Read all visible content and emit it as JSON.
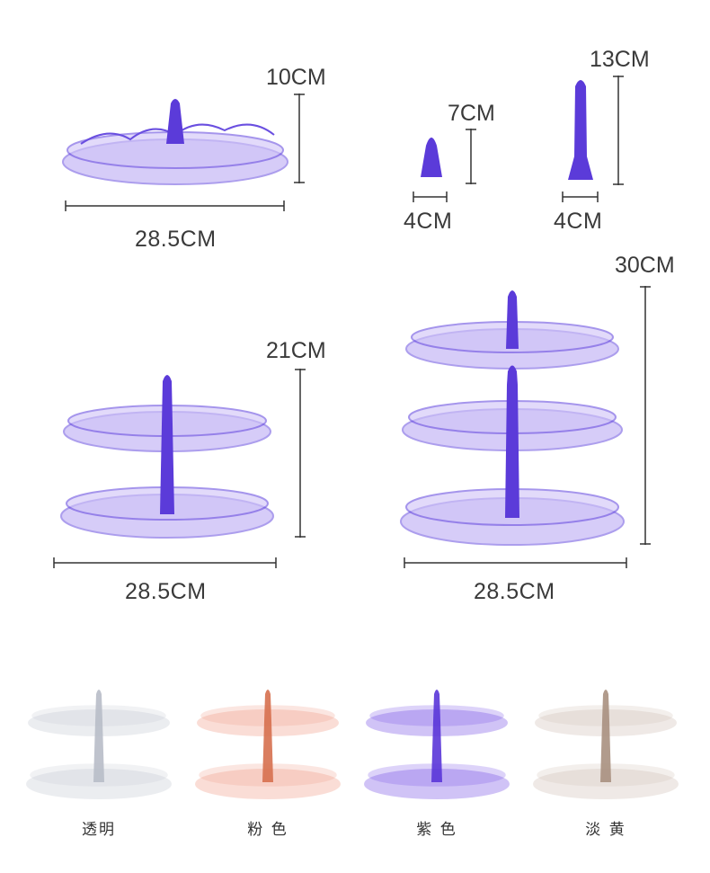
{
  "dims": {
    "single_height": "10CM",
    "single_width": "28.5CM",
    "small_pole_height": "7CM",
    "small_pole_width": "4CM",
    "tall_pole_height": "13CM",
    "tall_pole_width": "4CM",
    "two_tier_height": "21CM",
    "two_tier_width": "28.5CM",
    "three_tier_height": "30CM",
    "three_tier_width": "28.5CM"
  },
  "variants": [
    {
      "name": "透明",
      "color": "#c8ccd6",
      "pole": "#b8bcc8"
    },
    {
      "name": "粉 色",
      "color": "#f2a08c",
      "pole": "#d6704f"
    },
    {
      "name": "紫 色",
      "color": "#7a55e8",
      "pole": "#5a36d8"
    },
    {
      "name": "淡 黄",
      "color": "#d2c2b8",
      "pole": "#a89080"
    }
  ],
  "colors": {
    "purple": "#6d4ce6",
    "purple_light": "#a994f2",
    "dim_line": "#333333"
  }
}
